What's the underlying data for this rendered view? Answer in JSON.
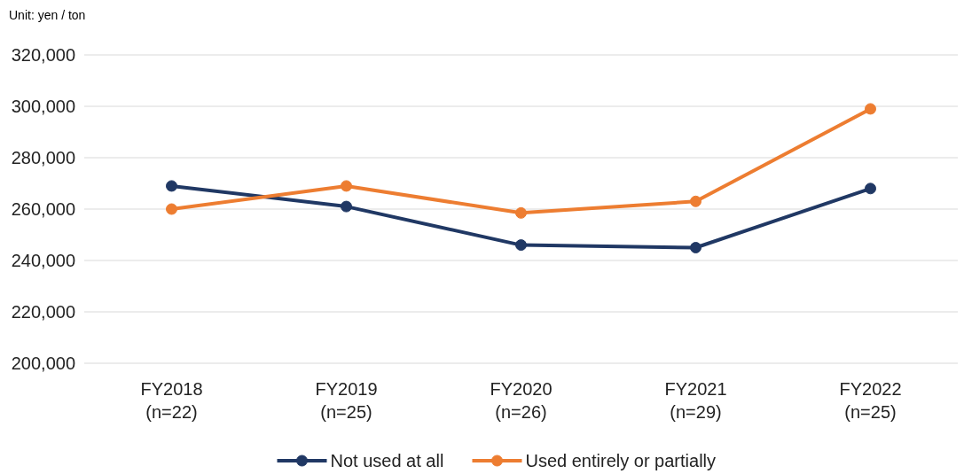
{
  "chart_data": {
    "type": "line",
    "annotations": [
      "Unit: yen / ton"
    ],
    "categories": [
      "FY2018\n(n=22)",
      "FY2019\n(n=25)",
      "FY2020\n(n=26)",
      "FY2021\n(n=29)",
      "FY2022\n(n=25)"
    ],
    "series": [
      {
        "name": "Not used at all",
        "color": "#203864",
        "values": [
          269000,
          261000,
          246000,
          245000,
          268000
        ]
      },
      {
        "name": "Used entirely or partially",
        "color": "#ed7d31",
        "values": [
          260000,
          269000,
          258500,
          263000,
          299000
        ]
      }
    ],
    "ylim": [
      200000,
      320000
    ],
    "yticks": [
      {
        "value": 200000,
        "label": "200,000"
      },
      {
        "value": 220000,
        "label": "220,000"
      },
      {
        "value": 240000,
        "label": "240,000"
      },
      {
        "value": 260000,
        "label": "260,000"
      },
      {
        "value": 280000,
        "label": "280,000"
      },
      {
        "value": 300000,
        "label": "300,000"
      },
      {
        "value": 320000,
        "label": "320,000"
      }
    ],
    "grid": "y",
    "legend": "bottom",
    "marker": "circle",
    "line_style": "solid"
  }
}
